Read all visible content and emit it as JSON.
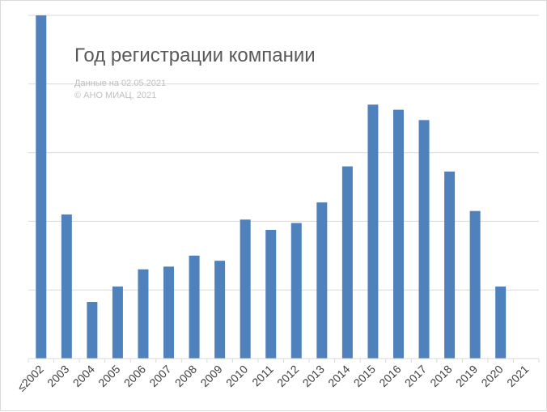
{
  "chart_data": {
    "type": "bar",
    "title": "Год регистрации компании",
    "notes": [
      "Данные на 02.05.2021",
      "© АНО МИАЦ, 2021"
    ],
    "categories": [
      "≤2002",
      "2003",
      "2004",
      "2005",
      "2006",
      "2007",
      "2008",
      "2009",
      "2010",
      "2011",
      "2012",
      "2013",
      "2014",
      "2015",
      "2016",
      "2017",
      "2018",
      "2019",
      "2020",
      "2021"
    ],
    "values": [
      100,
      42,
      16.5,
      21,
      26,
      26.8,
      30,
      28.5,
      40.5,
      37.5,
      39.5,
      45.5,
      56,
      74,
      72.5,
      69.5,
      54.5,
      43,
      21,
      0
    ],
    "ylim": [
      0,
      100
    ],
    "ygrid_step": 20,
    "y_tick_labels_visible": false,
    "grid": true,
    "legend": "none",
    "bar_color": "#4f81bd",
    "grid_color": "#d9d9d9"
  }
}
